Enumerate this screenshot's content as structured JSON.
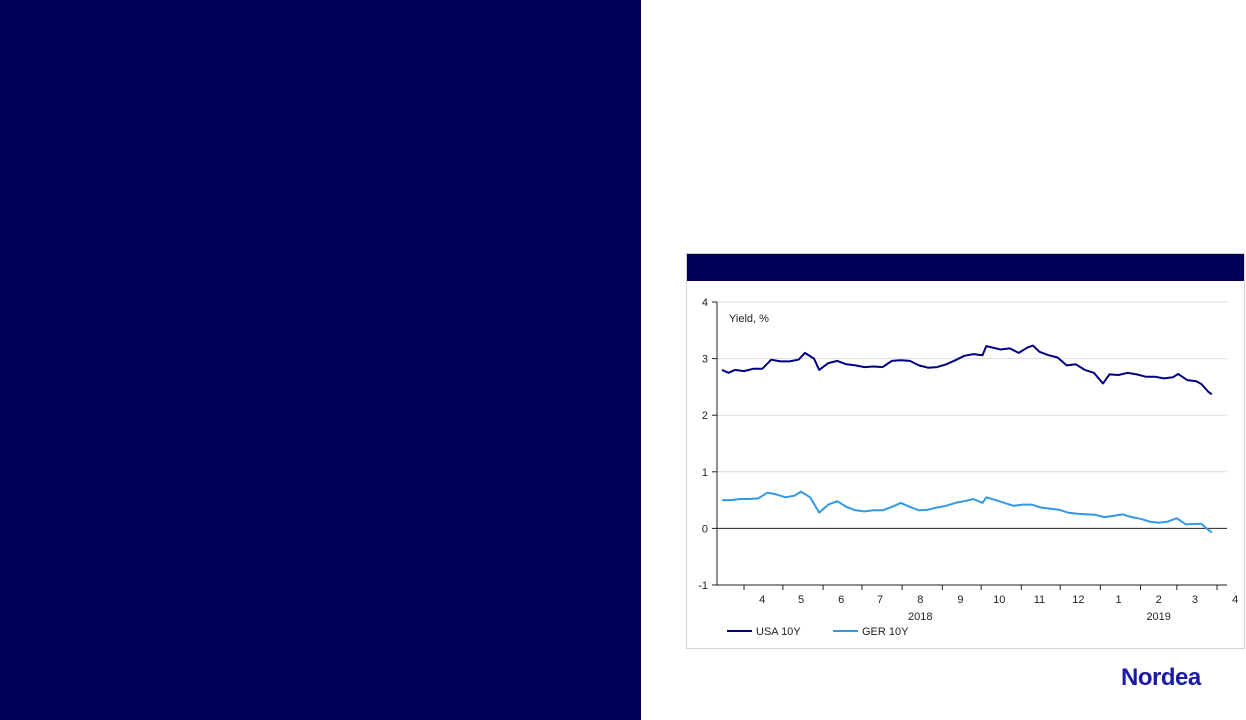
{
  "brand": {
    "logo_text": "Nordea"
  },
  "colors": {
    "panel": "#000059",
    "usa": "#000080",
    "ger": "#3399e6"
  },
  "chart_data": {
    "type": "line",
    "title": "",
    "ylabel": "Yield, %",
    "ylim": [
      -1,
      4
    ],
    "yticks": [
      -1,
      0,
      1,
      2,
      3,
      4
    ],
    "grid": true,
    "legend_position": "bottom-left",
    "x_range": [
      "2018-03-15",
      "2019-04-01"
    ],
    "xticks": [
      {
        "label": "4",
        "date": "2018-04-15"
      },
      {
        "label": "5",
        "date": "2018-05-15"
      },
      {
        "label": "6",
        "date": "2018-06-15"
      },
      {
        "label": "7",
        "date": "2018-07-15"
      },
      {
        "label": "8",
        "date": "2018-08-15"
      },
      {
        "label": "9",
        "date": "2018-09-15"
      },
      {
        "label": "10",
        "date": "2018-10-15"
      },
      {
        "label": "11",
        "date": "2018-11-15"
      },
      {
        "label": "12",
        "date": "2018-12-15"
      },
      {
        "label": "1",
        "date": "2019-01-15"
      },
      {
        "label": "2",
        "date": "2019-02-15"
      },
      {
        "label": "3",
        "date": "2019-03-15"
      },
      {
        "label": "4",
        "date": "2019-04-15"
      }
    ],
    "year_labels": [
      {
        "label": "2018",
        "date": "2018-08-15"
      },
      {
        "label": "2019",
        "date": "2019-02-15"
      }
    ],
    "series": [
      {
        "name": "USA 10Y",
        "color": "#000080",
        "points": [
          [
            "2018-03-15",
            2.8
          ],
          [
            "2018-03-20",
            2.75
          ],
          [
            "2018-03-25",
            2.8
          ],
          [
            "2018-04-01",
            2.78
          ],
          [
            "2018-04-08",
            2.82
          ],
          [
            "2018-04-15",
            2.82
          ],
          [
            "2018-04-22",
            2.98
          ],
          [
            "2018-04-29",
            2.95
          ],
          [
            "2018-05-06",
            2.95
          ],
          [
            "2018-05-13",
            2.98
          ],
          [
            "2018-05-18",
            3.1
          ],
          [
            "2018-05-25",
            3.0
          ],
          [
            "2018-05-29",
            2.8
          ],
          [
            "2018-06-05",
            2.92
          ],
          [
            "2018-06-12",
            2.96
          ],
          [
            "2018-06-19",
            2.9
          ],
          [
            "2018-06-26",
            2.88
          ],
          [
            "2018-07-03",
            2.85
          ],
          [
            "2018-07-10",
            2.86
          ],
          [
            "2018-07-17",
            2.85
          ],
          [
            "2018-07-24",
            2.96
          ],
          [
            "2018-07-31",
            2.97
          ],
          [
            "2018-08-07",
            2.96
          ],
          [
            "2018-08-14",
            2.88
          ],
          [
            "2018-08-21",
            2.84
          ],
          [
            "2018-08-28",
            2.85
          ],
          [
            "2018-09-04",
            2.9
          ],
          [
            "2018-09-11",
            2.97
          ],
          [
            "2018-09-18",
            3.05
          ],
          [
            "2018-09-25",
            3.08
          ],
          [
            "2018-10-02",
            3.06
          ],
          [
            "2018-10-05",
            3.22
          ],
          [
            "2018-10-09",
            3.2
          ],
          [
            "2018-10-16",
            3.16
          ],
          [
            "2018-10-23",
            3.18
          ],
          [
            "2018-10-30",
            3.1
          ],
          [
            "2018-11-06",
            3.2
          ],
          [
            "2018-11-10",
            3.23
          ],
          [
            "2018-11-15",
            3.12
          ],
          [
            "2018-11-22",
            3.06
          ],
          [
            "2018-11-29",
            3.02
          ],
          [
            "2018-12-06",
            2.88
          ],
          [
            "2018-12-13",
            2.9
          ],
          [
            "2018-12-20",
            2.8
          ],
          [
            "2018-12-27",
            2.75
          ],
          [
            "2019-01-03",
            2.56
          ],
          [
            "2019-01-08",
            2.72
          ],
          [
            "2019-01-15",
            2.71
          ],
          [
            "2019-01-22",
            2.75
          ],
          [
            "2019-01-29",
            2.72
          ],
          [
            "2019-02-05",
            2.68
          ],
          [
            "2019-02-12",
            2.68
          ],
          [
            "2019-02-19",
            2.65
          ],
          [
            "2019-02-26",
            2.67
          ],
          [
            "2019-03-02",
            2.73
          ],
          [
            "2019-03-09",
            2.62
          ],
          [
            "2019-03-16",
            2.6
          ],
          [
            "2019-03-20",
            2.55
          ],
          [
            "2019-03-25",
            2.42
          ],
          [
            "2019-03-28",
            2.37
          ]
        ]
      },
      {
        "name": "GER 10Y",
        "color": "#3399e6",
        "points": [
          [
            "2018-03-15",
            0.5
          ],
          [
            "2018-03-22",
            0.5
          ],
          [
            "2018-03-29",
            0.52
          ],
          [
            "2018-04-05",
            0.52
          ],
          [
            "2018-04-12",
            0.53
          ],
          [
            "2018-04-19",
            0.63
          ],
          [
            "2018-04-26",
            0.6
          ],
          [
            "2018-05-03",
            0.55
          ],
          [
            "2018-05-10",
            0.58
          ],
          [
            "2018-05-15",
            0.65
          ],
          [
            "2018-05-22",
            0.55
          ],
          [
            "2018-05-29",
            0.28
          ],
          [
            "2018-06-05",
            0.42
          ],
          [
            "2018-06-12",
            0.48
          ],
          [
            "2018-06-19",
            0.38
          ],
          [
            "2018-06-26",
            0.32
          ],
          [
            "2018-07-03",
            0.3
          ],
          [
            "2018-07-10",
            0.32
          ],
          [
            "2018-07-17",
            0.32
          ],
          [
            "2018-07-24",
            0.38
          ],
          [
            "2018-07-31",
            0.45
          ],
          [
            "2018-08-07",
            0.38
          ],
          [
            "2018-08-14",
            0.32
          ],
          [
            "2018-08-21",
            0.33
          ],
          [
            "2018-08-28",
            0.37
          ],
          [
            "2018-09-04",
            0.4
          ],
          [
            "2018-09-11",
            0.45
          ],
          [
            "2018-09-18",
            0.48
          ],
          [
            "2018-09-25",
            0.52
          ],
          [
            "2018-10-02",
            0.45
          ],
          [
            "2018-10-05",
            0.55
          ],
          [
            "2018-10-12",
            0.5
          ],
          [
            "2018-10-19",
            0.45
          ],
          [
            "2018-10-26",
            0.4
          ],
          [
            "2018-11-02",
            0.42
          ],
          [
            "2018-11-09",
            0.42
          ],
          [
            "2018-11-16",
            0.37
          ],
          [
            "2018-11-23",
            0.35
          ],
          [
            "2018-11-30",
            0.33
          ],
          [
            "2018-12-07",
            0.28
          ],
          [
            "2018-12-14",
            0.26
          ],
          [
            "2018-12-21",
            0.25
          ],
          [
            "2018-12-28",
            0.24
          ],
          [
            "2019-01-04",
            0.2
          ],
          [
            "2019-01-11",
            0.22
          ],
          [
            "2019-01-18",
            0.25
          ],
          [
            "2019-01-25",
            0.2
          ],
          [
            "2019-02-01",
            0.17
          ],
          [
            "2019-02-08",
            0.12
          ],
          [
            "2019-02-15",
            0.1
          ],
          [
            "2019-02-22",
            0.12
          ],
          [
            "2019-03-01",
            0.18
          ],
          [
            "2019-03-08",
            0.07
          ],
          [
            "2019-03-15",
            0.08
          ],
          [
            "2019-03-20",
            0.08
          ],
          [
            "2019-03-25",
            -0.02
          ],
          [
            "2019-03-28",
            -0.07
          ]
        ]
      }
    ]
  }
}
